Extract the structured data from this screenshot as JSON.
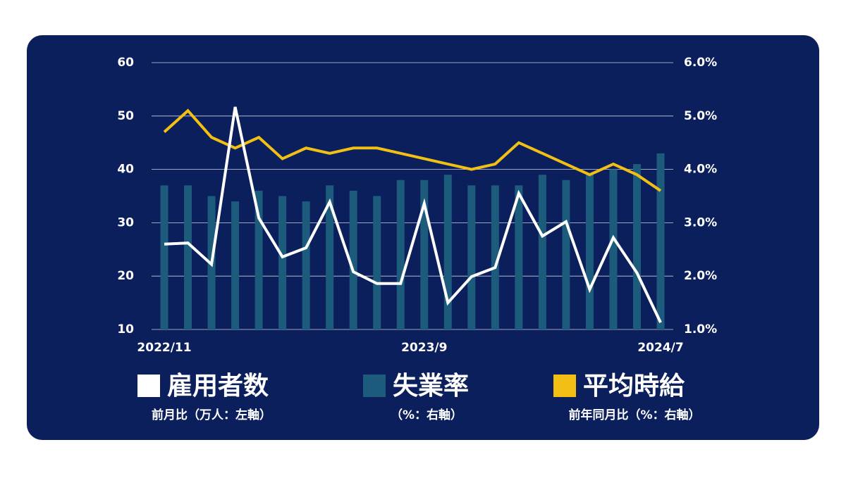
{
  "chart_data": {
    "type": "combo",
    "categories": [
      "2022/11",
      null,
      null,
      null,
      null,
      null,
      null,
      null,
      null,
      null,
      null,
      "2023/9",
      null,
      null,
      null,
      null,
      null,
      null,
      null,
      null,
      null,
      "2024/7"
    ],
    "ylim": [
      10,
      60
    ],
    "yticks": [
      10,
      20,
      30,
      40,
      50,
      60
    ],
    "y2lim": [
      1.0,
      6.0
    ],
    "y2ticks": [
      {
        "value": 1.0,
        "label": "1.0%"
      },
      {
        "value": 2.0,
        "label": "2.0%"
      },
      {
        "value": 3.0,
        "label": "3.0%"
      },
      {
        "value": 4.0,
        "label": "4.0%"
      },
      {
        "value": 5.0,
        "label": "5.0%"
      },
      {
        "value": 6.0,
        "label": "6.0%"
      }
    ],
    "grid": true,
    "series": [
      {
        "name": "雇用者数",
        "note": "前月比（万人：左軸）",
        "type": "line",
        "axis": "y",
        "color": "#ffffff",
        "values": [
          26.0,
          26.2,
          22.2,
          51.7,
          30.9,
          23.6,
          25.3,
          33.9,
          20.8,
          18.6,
          18.6,
          33.6,
          15.0,
          19.9,
          21.6,
          35.5,
          27.5,
          30.2,
          17.5,
          27.2,
          20.6,
          11.3
        ]
      },
      {
        "name": "失業率",
        "note": "（%：右軸）",
        "type": "bar",
        "axis": "y2",
        "color": "#1c5b7c",
        "values": [
          3.7,
          3.7,
          3.5,
          3.4,
          3.6,
          3.5,
          3.4,
          3.7,
          3.6,
          3.5,
          3.8,
          3.8,
          3.9,
          3.7,
          3.7,
          3.7,
          3.9,
          3.8,
          3.9,
          4.0,
          4.1,
          4.3
        ]
      },
      {
        "name": "平均時給",
        "note": "前年同月比（%：右軸）",
        "type": "line",
        "axis": "y2",
        "color": "#f2c014",
        "values": [
          4.7,
          5.1,
          4.6,
          4.4,
          4.6,
          4.2,
          4.4,
          4.3,
          4.4,
          4.4,
          4.3,
          4.2,
          4.1,
          4.0,
          4.1,
          4.5,
          4.3,
          4.1,
          3.9,
          4.1,
          3.9,
          3.6
        ]
      }
    ]
  }
}
